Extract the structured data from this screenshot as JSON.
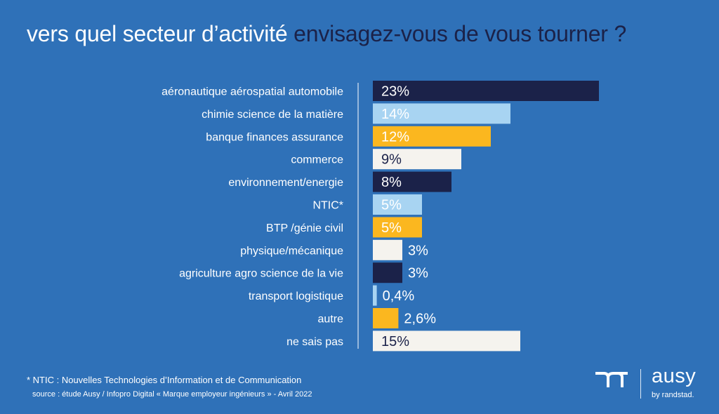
{
  "title": {
    "part1": "vers quel secteur d’activité",
    "part2": "envisagez-vous de vous tourner ?"
  },
  "colors": {
    "background": "#2f71b8",
    "dark_navy": "#1b2249",
    "light_blue": "#a8d4f2",
    "orange": "#fbb71f",
    "off_white": "#f5f3ee"
  },
  "chart_data": {
    "type": "bar",
    "orientation": "horizontal",
    "xlim": [
      0,
      23
    ],
    "categories": [
      "aéronautique aérospatial automobile",
      "chimie science de la matière",
      "banque finances assurance",
      "commerce",
      "environnement/energie",
      "NTIC*",
      "BTP /génie civil",
      "physique/mécanique",
      "agriculture agro science de la vie",
      "transport logistique",
      "autre",
      "ne sais pas"
    ],
    "values": [
      23,
      14,
      12,
      9,
      8,
      5,
      5,
      3,
      3,
      0.4,
      2.6,
      15
    ],
    "labels": [
      "23%",
      "14%",
      "12%",
      "9%",
      "8%",
      "5%",
      "5%",
      "3%",
      "3%",
      "0,4%",
      "2,6%",
      "15%"
    ],
    "bar_colors": [
      "#1b2249",
      "#a8d4f2",
      "#fbb71f",
      "#f5f3ee",
      "#1b2249",
      "#a8d4f2",
      "#fbb71f",
      "#f5f3ee",
      "#1b2249",
      "#a8d4f2",
      "#fbb71f",
      "#f5f3ee"
    ],
    "label_colors": [
      "#ffffff",
      "#ffffff",
      "#ffffff",
      "#1b2249",
      "#ffffff",
      "#ffffff",
      "#ffffff",
      "#1b2249",
      "#ffffff",
      "#ffffff",
      "#ffffff",
      "#1b2249"
    ]
  },
  "footnote": "* NTIC : Nouvelles Technologies d’Information et de Communication",
  "source": "source : étude Ausy / Infopro Digital « Marque employeur ingénieurs » - Avril 2022",
  "logo": {
    "word": "ausy",
    "sub": "by randstad."
  }
}
